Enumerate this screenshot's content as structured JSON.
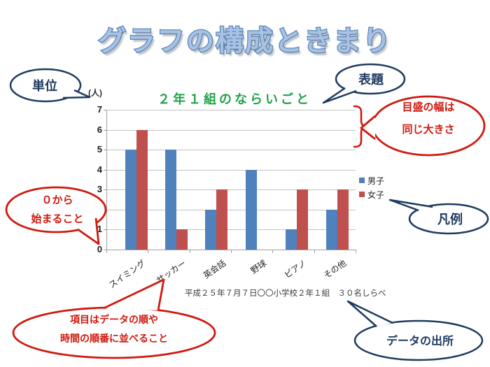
{
  "page_title": "グラフの構成ときまり",
  "chart_data": {
    "type": "bar",
    "title": "２年１組のならいごと",
    "unit_label": "(人)",
    "categories": [
      "スイミング",
      "サッカー",
      "英会話",
      "野球",
      "ピアノ",
      "その他"
    ],
    "series": [
      {
        "name": "男子",
        "color": "#4F81BD",
        "values": [
          5,
          5,
          2,
          4,
          1,
          2
        ]
      },
      {
        "name": "女子",
        "color": "#C0504D",
        "values": [
          6,
          1,
          3,
          0,
          3,
          3
        ]
      }
    ],
    "ylim": [
      0,
      7
    ],
    "yticks": [
      0,
      1,
      2,
      3,
      4,
      5,
      6,
      7
    ],
    "grid": true,
    "legend_position": "right",
    "caption": "平成２５年７月７日〇〇小学校２年１組　３０名しらべ"
  },
  "callouts": {
    "unit": {
      "text": "単位"
    },
    "chart_title": {
      "text": "表題"
    },
    "tick_width": {
      "lines": [
        "目盛の幅は",
        "同じ大きさ"
      ]
    },
    "zero_start": {
      "lines": [
        "０から",
        "始まること"
      ]
    },
    "legend": {
      "text": "凡例"
    },
    "item_order": {
      "lines": [
        "項目はデータの順や",
        "時間の順番に並べること"
      ]
    },
    "data_source": {
      "text": "データの出所"
    }
  },
  "colors": {
    "navy": "#1F3A60",
    "red": "#D0190F",
    "title-fill": "#A6C2E4",
    "title-outline": "#5E88BC",
    "chart-title-green": "#21A24A",
    "gridline": "#C3C3C3",
    "axis": "#A0A0A0",
    "text-dark": "#3A3A3A"
  }
}
